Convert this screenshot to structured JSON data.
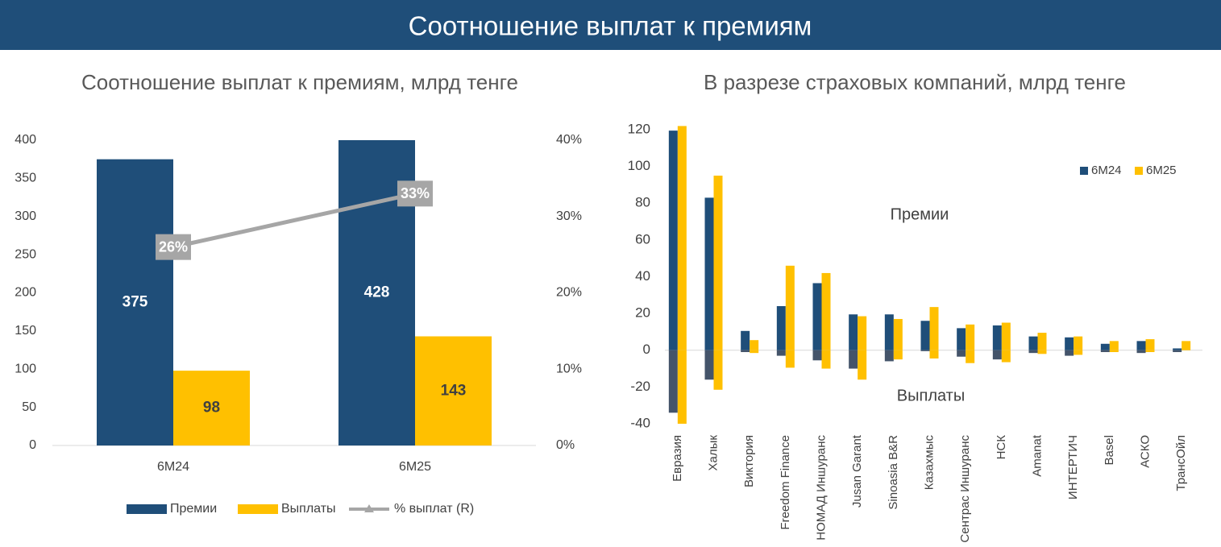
{
  "header": {
    "title": "Соотношение выплат к премиям"
  },
  "chart_data": [
    {
      "type": "bar_line",
      "title": "Соотношение выплат к премиям, млрд тенге",
      "categories": [
        "6M24",
        "6M25"
      ],
      "series": [
        {
          "name": "Премии",
          "color": "#1f4e79",
          "values": [
            375,
            428
          ]
        },
        {
          "name": "Выплаты",
          "color": "#ffc000",
          "values": [
            98,
            143
          ]
        },
        {
          "name": "% выплат (R)",
          "color": "#a6a6a6",
          "axis": "y2",
          "values": [
            26,
            33
          ],
          "value_labels": [
            "26%",
            "33%"
          ]
        }
      ],
      "ylim": [
        0,
        400
      ],
      "yticks": [
        0,
        50,
        100,
        150,
        200,
        250,
        300,
        350,
        400
      ],
      "y2lim": [
        0,
        40
      ],
      "y2ticks": [
        {
          "value": 0,
          "label": "0%"
        },
        {
          "value": 10,
          "label": "10%"
        },
        {
          "value": 20,
          "label": "20%"
        },
        {
          "value": 30,
          "label": "30%"
        },
        {
          "value": 40,
          "label": "40%"
        }
      ],
      "grid": false,
      "legend": "bottom"
    },
    {
      "type": "bar",
      "title": "В разрезе страховых компаний, млрд тенге",
      "categories": [
        "Евразия",
        "Халык",
        "Виктория",
        "Freedom Finance",
        "НОМАД Иншуранс",
        "Jusan Garant",
        "Sinoasia B&R",
        "Казахмыс",
        "Сентрас Иншуранс",
        "НСК",
        "Amanat",
        "ИНТЕРТИЧ",
        "Basel",
        "АСКО",
        "ТрансОйл"
      ],
      "series": [
        {
          "name": "6M24",
          "color": "#1f4e79",
          "negative_color": "#44546a",
          "values": [
            119.5,
            83,
            10.5,
            24,
            36.5,
            19.5,
            19.5,
            16,
            12,
            13.5,
            7.5,
            7,
            3.5,
            5,
            1
          ],
          "negative_values": [
            -34,
            -16,
            -1,
            -3,
            -5.5,
            -10,
            -6,
            -0.5,
            -3.5,
            -5,
            -1.5,
            -3,
            -1,
            -1.5,
            -1
          ]
        },
        {
          "name": "6M25",
          "color": "#ffc000",
          "negative_color": "#ffc000",
          "values": [
            122,
            95,
            5.5,
            46,
            42,
            18.5,
            17,
            23.5,
            14,
            15,
            9.5,
            7.5,
            5,
            6,
            5
          ],
          "negative_values": [
            -40,
            -21.5,
            -1.5,
            -9.5,
            -10,
            -16,
            -5,
            -4.5,
            -7,
            -6.5,
            -2,
            -2.5,
            -1,
            -1,
            0
          ]
        }
      ],
      "annotations": [
        "Премии",
        "Выплаты"
      ],
      "ylim": [
        -40,
        120
      ],
      "yticks": [
        -40,
        -20,
        0,
        20,
        40,
        60,
        80,
        100,
        120
      ],
      "grid": false,
      "legend": "top-right"
    }
  ]
}
